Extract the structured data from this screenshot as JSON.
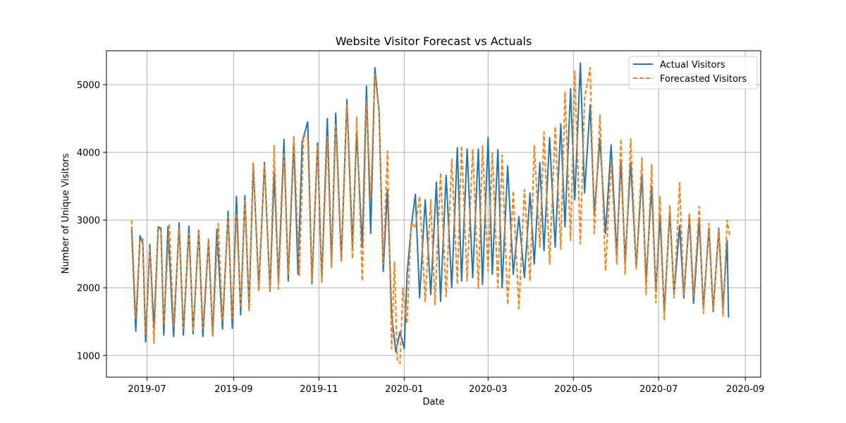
{
  "chart_data": {
    "type": "line",
    "title": "Website Visitor Forecast vs Actuals",
    "xlabel": "Date",
    "ylabel": "Number of Unique Visitors",
    "x_range": [
      "2019-06-02",
      "2020-09-12"
    ],
    "ylim": [
      680,
      5500
    ],
    "x_ticks": [
      {
        "date": "2019-07-01",
        "label": "2019-07"
      },
      {
        "date": "2019-09-01",
        "label": "2019-09"
      },
      {
        "date": "2019-11-01",
        "label": "2019-11"
      },
      {
        "date": "2020-01-01",
        "label": "2020-01"
      },
      {
        "date": "2020-03-01",
        "label": "2020-03"
      },
      {
        "date": "2020-05-01",
        "label": "2020-05"
      },
      {
        "date": "2020-07-01",
        "label": "2020-07"
      },
      {
        "date": "2020-09-01",
        "label": "2020-09"
      }
    ],
    "y_ticks": [
      1000,
      2000,
      3000,
      4000,
      5000
    ],
    "grid": true,
    "legend_position": "top-right",
    "series": [
      {
        "name": "Actual Visitors",
        "color": "#1f77b4",
        "style": "solid",
        "points": [
          [
            "2019-06-20",
            2880
          ],
          [
            "2019-06-23",
            1360
          ],
          [
            "2019-06-26",
            2770
          ],
          [
            "2019-06-28",
            2650
          ],
          [
            "2019-06-30",
            1200
          ],
          [
            "2019-07-03",
            2640
          ],
          [
            "2019-07-06",
            1400
          ],
          [
            "2019-07-09",
            2900
          ],
          [
            "2019-07-11",
            2880
          ],
          [
            "2019-07-13",
            1300
          ],
          [
            "2019-07-16",
            2900
          ],
          [
            "2019-07-20",
            1280
          ],
          [
            "2019-07-24",
            2960
          ],
          [
            "2019-07-27",
            1300
          ],
          [
            "2019-07-31",
            2910
          ],
          [
            "2019-08-03",
            1320
          ],
          [
            "2019-08-07",
            2850
          ],
          [
            "2019-08-10",
            1280
          ],
          [
            "2019-08-14",
            2700
          ],
          [
            "2019-08-17",
            1290
          ],
          [
            "2019-08-20",
            2860
          ],
          [
            "2019-08-24",
            1390
          ],
          [
            "2019-08-28",
            3130
          ],
          [
            "2019-08-31",
            1400
          ],
          [
            "2019-09-03",
            3350
          ],
          [
            "2019-09-06",
            1600
          ],
          [
            "2019-09-09",
            3360
          ],
          [
            "2019-09-12",
            1700
          ],
          [
            "2019-09-15",
            3840
          ],
          [
            "2019-09-19",
            2000
          ],
          [
            "2019-09-23",
            3850
          ],
          [
            "2019-09-27",
            1950
          ],
          [
            "2019-09-30",
            3700
          ],
          [
            "2019-10-03",
            2100
          ],
          [
            "2019-10-07",
            4190
          ],
          [
            "2019-10-10",
            2100
          ],
          [
            "2019-10-14",
            4150
          ],
          [
            "2019-10-17",
            2200
          ],
          [
            "2019-10-20",
            4150
          ],
          [
            "2019-10-24",
            4450
          ],
          [
            "2019-10-27",
            2060
          ],
          [
            "2019-10-31",
            4140
          ],
          [
            "2019-11-03",
            2100
          ],
          [
            "2019-11-07",
            4500
          ],
          [
            "2019-11-10",
            2350
          ],
          [
            "2019-11-13",
            4580
          ],
          [
            "2019-11-17",
            2400
          ],
          [
            "2019-11-21",
            4780
          ],
          [
            "2019-11-25",
            2600
          ],
          [
            "2019-11-28",
            4300
          ],
          [
            "2019-12-02",
            2600
          ],
          [
            "2019-12-05",
            4980
          ],
          [
            "2019-12-08",
            2800
          ],
          [
            "2019-12-11",
            5250
          ],
          [
            "2019-12-14",
            4600
          ],
          [
            "2019-12-17",
            2240
          ],
          [
            "2019-12-20",
            3450
          ],
          [
            "2019-12-23",
            1600
          ],
          [
            "2019-12-26",
            1050
          ],
          [
            "2019-12-29",
            1350
          ],
          [
            "2020-01-01",
            1100
          ],
          [
            "2020-01-03",
            2180
          ],
          [
            "2020-01-06",
            2900
          ],
          [
            "2020-01-09",
            3380
          ],
          [
            "2020-01-12",
            1850
          ],
          [
            "2020-01-16",
            3300
          ],
          [
            "2020-01-20",
            1900
          ],
          [
            "2020-01-24",
            3560
          ],
          [
            "2020-01-27",
            1800
          ],
          [
            "2020-01-31",
            3660
          ],
          [
            "2020-02-04",
            2000
          ],
          [
            "2020-02-08",
            4070
          ],
          [
            "2020-02-11",
            2100
          ],
          [
            "2020-02-15",
            4050
          ],
          [
            "2020-02-19",
            2150
          ],
          [
            "2020-02-23",
            4050
          ],
          [
            "2020-02-26",
            2050
          ],
          [
            "2020-03-01",
            4220
          ],
          [
            "2020-03-04",
            2200
          ],
          [
            "2020-03-08",
            4040
          ],
          [
            "2020-03-11",
            2000
          ],
          [
            "2020-03-15",
            3800
          ],
          [
            "2020-03-19",
            2200
          ],
          [
            "2020-03-23",
            3050
          ],
          [
            "2020-03-27",
            2150
          ],
          [
            "2020-03-31",
            3400
          ],
          [
            "2020-04-03",
            2350
          ],
          [
            "2020-04-07",
            3850
          ],
          [
            "2020-04-10",
            2550
          ],
          [
            "2020-04-14",
            4220
          ],
          [
            "2020-04-18",
            2600
          ],
          [
            "2020-04-22",
            4420
          ],
          [
            "2020-04-25",
            2900
          ],
          [
            "2020-04-29",
            4940
          ],
          [
            "2020-05-02",
            3300
          ],
          [
            "2020-05-06",
            5320
          ],
          [
            "2020-05-09",
            3400
          ],
          [
            "2020-05-13",
            4700
          ],
          [
            "2020-05-16",
            3100
          ],
          [
            "2020-05-20",
            4200
          ],
          [
            "2020-05-24",
            2800
          ],
          [
            "2020-05-28",
            4110
          ],
          [
            "2020-06-01",
            2500
          ],
          [
            "2020-06-04",
            3880
          ],
          [
            "2020-06-07",
            2400
          ],
          [
            "2020-06-11",
            3850
          ],
          [
            "2020-06-15",
            2300
          ],
          [
            "2020-06-19",
            3680
          ],
          [
            "2020-06-22",
            2100
          ],
          [
            "2020-06-26",
            3500
          ],
          [
            "2020-06-29",
            1950
          ],
          [
            "2020-07-02",
            3050
          ],
          [
            "2020-07-05",
            1650
          ],
          [
            "2020-07-09",
            3120
          ],
          [
            "2020-07-12",
            1900
          ],
          [
            "2020-07-16",
            2920
          ],
          [
            "2020-07-19",
            1850
          ],
          [
            "2020-07-23",
            3050
          ],
          [
            "2020-07-26",
            1770
          ],
          [
            "2020-07-30",
            3000
          ],
          [
            "2020-08-02",
            1700
          ],
          [
            "2020-08-06",
            2880
          ],
          [
            "2020-08-09",
            1650
          ],
          [
            "2020-08-13",
            2880
          ],
          [
            "2020-08-16",
            1700
          ],
          [
            "2020-08-19",
            2700
          ],
          [
            "2020-08-20",
            1560
          ]
        ]
      },
      {
        "name": "Forecasted Visitors",
        "color": "#ff7f0e",
        "style": "dashed",
        "points": [
          [
            "2019-06-20",
            3000
          ],
          [
            "2019-06-23",
            1550
          ],
          [
            "2019-06-26",
            2700
          ],
          [
            "2019-06-28",
            2720
          ],
          [
            "2019-06-30",
            1320
          ],
          [
            "2019-07-03",
            2600
          ],
          [
            "2019-07-06",
            1180
          ],
          [
            "2019-07-09",
            2880
          ],
          [
            "2019-07-11",
            2860
          ],
          [
            "2019-07-13",
            1450
          ],
          [
            "2019-07-17",
            2950
          ],
          [
            "2019-07-20",
            1430
          ],
          [
            "2019-07-24",
            2880
          ],
          [
            "2019-07-27",
            1400
          ],
          [
            "2019-07-31",
            2800
          ],
          [
            "2019-08-03",
            1350
          ],
          [
            "2019-08-07",
            2850
          ],
          [
            "2019-08-10",
            1400
          ],
          [
            "2019-08-14",
            2720
          ],
          [
            "2019-08-17",
            1300
          ],
          [
            "2019-08-21",
            2950
          ],
          [
            "2019-08-24",
            1500
          ],
          [
            "2019-08-28",
            3050
          ],
          [
            "2019-08-31",
            1550
          ],
          [
            "2019-09-03",
            3100
          ],
          [
            "2019-09-06",
            1700
          ],
          [
            "2019-09-09",
            3300
          ],
          [
            "2019-09-12",
            1660
          ],
          [
            "2019-09-15",
            3830
          ],
          [
            "2019-09-19",
            1950
          ],
          [
            "2019-09-23",
            3830
          ],
          [
            "2019-09-27",
            1960
          ],
          [
            "2019-09-30",
            4100
          ],
          [
            "2019-10-03",
            1980
          ],
          [
            "2019-10-07",
            4000
          ],
          [
            "2019-10-10",
            2200
          ],
          [
            "2019-10-14",
            4250
          ],
          [
            "2019-10-18",
            2180
          ],
          [
            "2019-10-21",
            4260
          ],
          [
            "2019-10-24",
            4200
          ],
          [
            "2019-10-27",
            2100
          ],
          [
            "2019-10-31",
            4100
          ],
          [
            "2019-11-03",
            2080
          ],
          [
            "2019-11-07",
            4230
          ],
          [
            "2019-11-10",
            2300
          ],
          [
            "2019-11-13",
            4430
          ],
          [
            "2019-11-17",
            2380
          ],
          [
            "2019-11-21",
            4700
          ],
          [
            "2019-11-25",
            2430
          ],
          [
            "2019-11-28",
            4520
          ],
          [
            "2019-12-02",
            2100
          ],
          [
            "2019-12-05",
            4750
          ],
          [
            "2019-12-08",
            3300
          ],
          [
            "2019-12-11",
            5150
          ],
          [
            "2019-12-14",
            4600
          ],
          [
            "2019-12-17",
            2350
          ],
          [
            "2019-12-20",
            4020
          ],
          [
            "2019-12-23",
            1100
          ],
          [
            "2019-12-25",
            2380
          ],
          [
            "2019-12-27",
            950
          ],
          [
            "2019-12-29",
            880
          ],
          [
            "2019-12-31",
            2000
          ],
          [
            "2020-01-03",
            1470
          ],
          [
            "2020-01-06",
            2960
          ],
          [
            "2020-01-09",
            2880
          ],
          [
            "2020-01-12",
            3350
          ],
          [
            "2020-01-16",
            1800
          ],
          [
            "2020-01-20",
            3300
          ],
          [
            "2020-01-23",
            1750
          ],
          [
            "2020-01-27",
            3700
          ],
          [
            "2020-01-31",
            1870
          ],
          [
            "2020-02-04",
            3900
          ],
          [
            "2020-02-08",
            2050
          ],
          [
            "2020-02-11",
            4100
          ],
          [
            "2020-02-15",
            2100
          ],
          [
            "2020-02-19",
            4050
          ],
          [
            "2020-02-23",
            1990
          ],
          [
            "2020-02-26",
            4100
          ],
          [
            "2020-03-01",
            2250
          ],
          [
            "2020-03-04",
            4000
          ],
          [
            "2020-03-08",
            2000
          ],
          [
            "2020-03-11",
            3960
          ],
          [
            "2020-03-15",
            1750
          ],
          [
            "2020-03-19",
            3430
          ],
          [
            "2020-03-23",
            1690
          ],
          [
            "2020-03-27",
            3450
          ],
          [
            "2020-03-31",
            2100
          ],
          [
            "2020-04-03",
            4100
          ],
          [
            "2020-04-07",
            2600
          ],
          [
            "2020-04-10",
            4300
          ],
          [
            "2020-04-14",
            2350
          ],
          [
            "2020-04-18",
            4380
          ],
          [
            "2020-04-22",
            2570
          ],
          [
            "2020-04-25",
            4900
          ],
          [
            "2020-04-29",
            2700
          ],
          [
            "2020-05-02",
            5200
          ],
          [
            "2020-05-06",
            2650
          ],
          [
            "2020-05-09",
            4800
          ],
          [
            "2020-05-13",
            5250
          ],
          [
            "2020-05-16",
            2800
          ],
          [
            "2020-05-20",
            4550
          ],
          [
            "2020-05-24",
            2250
          ],
          [
            "2020-05-28",
            3860
          ],
          [
            "2020-06-01",
            2350
          ],
          [
            "2020-06-04",
            4200
          ],
          [
            "2020-06-07",
            2200
          ],
          [
            "2020-06-11",
            4200
          ],
          [
            "2020-06-15",
            2280
          ],
          [
            "2020-06-19",
            3920
          ],
          [
            "2020-06-22",
            1900
          ],
          [
            "2020-06-26",
            3820
          ],
          [
            "2020-06-29",
            1780
          ],
          [
            "2020-07-02",
            3350
          ],
          [
            "2020-07-05",
            1530
          ],
          [
            "2020-07-09",
            3220
          ],
          [
            "2020-07-12",
            1850
          ],
          [
            "2020-07-16",
            3550
          ],
          [
            "2020-07-19",
            1900
          ],
          [
            "2020-07-23",
            3100
          ],
          [
            "2020-07-26",
            1870
          ],
          [
            "2020-07-30",
            3200
          ],
          [
            "2020-08-02",
            1620
          ],
          [
            "2020-08-06",
            2950
          ],
          [
            "2020-08-09",
            1680
          ],
          [
            "2020-08-13",
            2850
          ],
          [
            "2020-08-16",
            1580
          ],
          [
            "2020-08-19",
            3000
          ],
          [
            "2020-08-21",
            2750
          ]
        ]
      }
    ]
  }
}
